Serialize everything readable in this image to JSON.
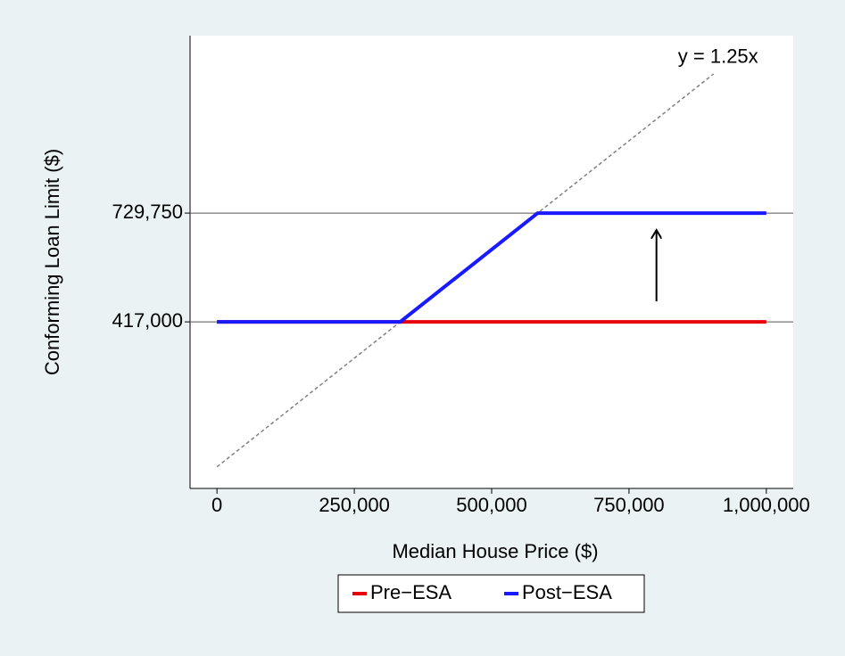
{
  "chart_data": {
    "type": "line",
    "x_label": "Median House Price ($)",
    "y_label": "Conforming Loan Limit ($)",
    "xlim": [
      -49000,
      1049000
    ],
    "ylim": [
      -62000,
      1240000
    ],
    "xticks": [
      {
        "value": 0,
        "label": "0"
      },
      {
        "value": 250000,
        "label": "250,000"
      },
      {
        "value": 500000,
        "label": "500,000"
      },
      {
        "value": 750000,
        "label": "750,000"
      },
      {
        "value": 1000000,
        "label": "1,000,000"
      }
    ],
    "yticks": [
      {
        "value": 417000,
        "label": "417,000"
      },
      {
        "value": 729750,
        "label": "729,750"
      }
    ],
    "grid": true,
    "legend": "bottom",
    "series": [
      {
        "name": "Pre−ESA",
        "color": "#e8000b",
        "x": [
          0,
          1000000
        ],
        "values": [
          417000,
          417000
        ]
      },
      {
        "name": "Post−ESA",
        "color": "#1a1aff",
        "x": [
          0,
          333600,
          583800,
          1000000
        ],
        "values": [
          417000,
          417000,
          729750,
          729750
        ]
      }
    ],
    "reference_line": {
      "label": "y = 1.25x",
      "color": "#808080",
      "x": [
        0,
        904000
      ],
      "values": [
        0,
        1130000
      ]
    },
    "arrow": {
      "x": [
        800000,
        800000
      ],
      "values": [
        476000,
        681000
      ]
    }
  }
}
